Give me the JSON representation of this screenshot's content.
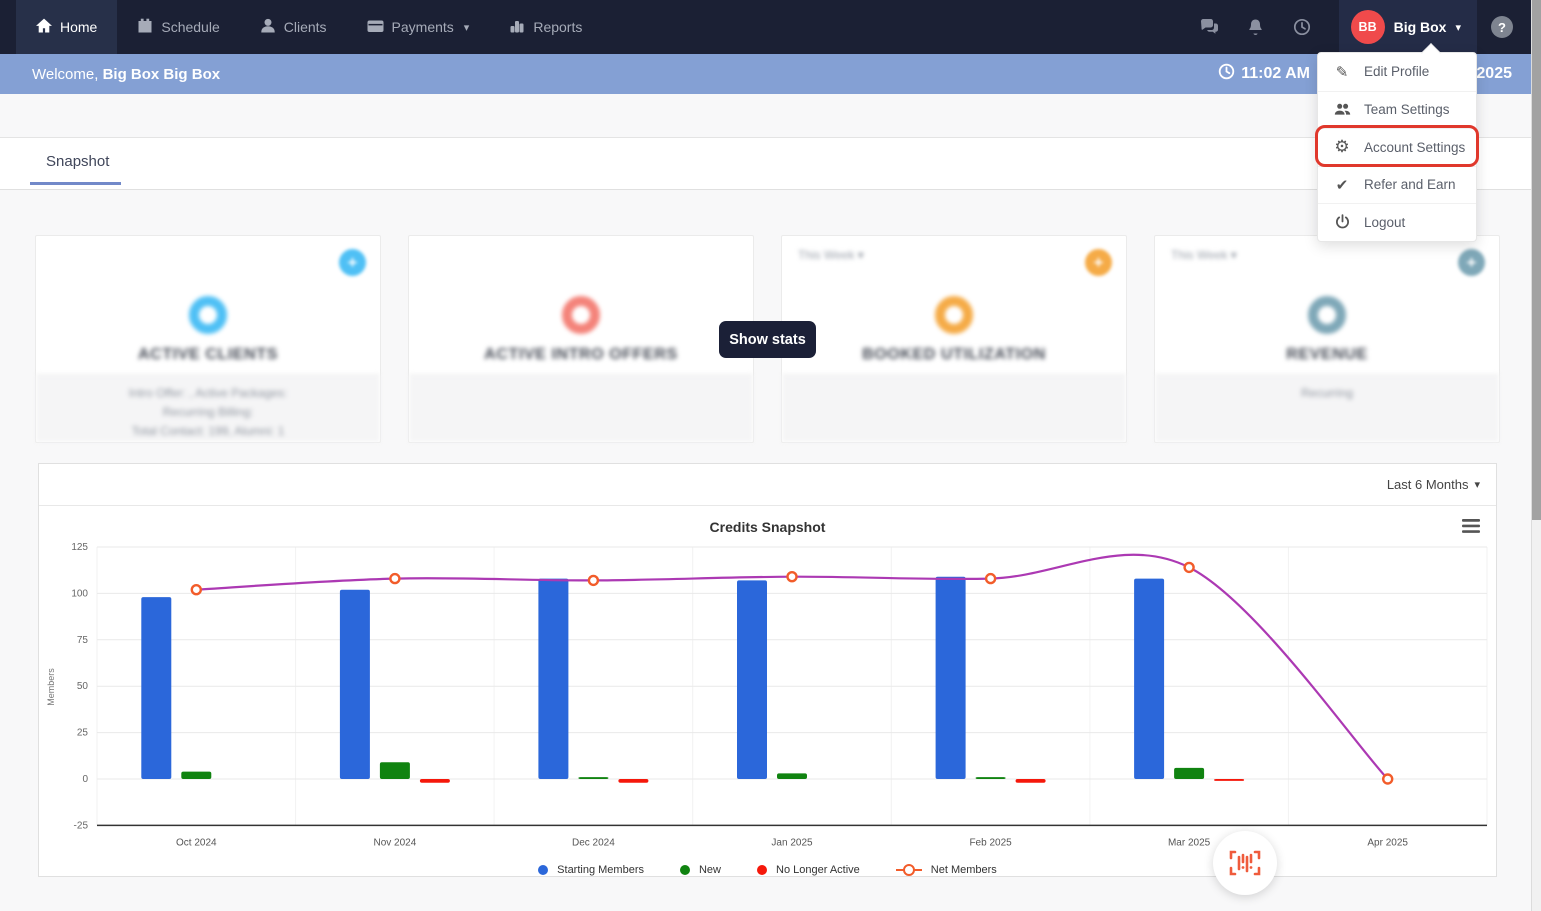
{
  "nav": {
    "items": [
      {
        "label": "Home",
        "icon": "home-icon",
        "active": true
      },
      {
        "label": "Schedule",
        "icon": "calendar-icon",
        "active": false
      },
      {
        "label": "Clients",
        "icon": "person-icon",
        "active": false
      },
      {
        "label": "Payments",
        "icon": "credit-card-icon",
        "active": false,
        "has_caret": true
      },
      {
        "label": "Reports",
        "icon": "bar-chart-icon",
        "active": false
      }
    ],
    "avatar_initials": "BB",
    "user_name": "Big Box",
    "help_glyph": "?"
  },
  "welcome_bar": {
    "greeting": "Welcome,",
    "user_full_name": "Big Box Big Box",
    "time": "11:02 AM",
    "date_fragment": "2025"
  },
  "user_menu": {
    "items": [
      {
        "label": "Edit Profile",
        "icon": "pencil-icon",
        "highlighted": false
      },
      {
        "label": "Team Settings",
        "icon": "team-icon",
        "highlighted": false
      },
      {
        "label": "Account Settings",
        "icon": "gear-icon",
        "highlighted": true
      },
      {
        "label": "Refer and Earn",
        "icon": "check-icon",
        "highlighted": false
      },
      {
        "label": "Logout",
        "icon": "power-icon",
        "highlighted": false
      }
    ],
    "highlight_color": "#e0382c"
  },
  "tabs": {
    "snapshot_label": "Snapshot"
  },
  "overlay": {
    "show_stats_label": "Show stats"
  },
  "stat_cards": [
    {
      "title": "ACTIVE CLIENTS",
      "accent": "#4fc0f5",
      "filter": "",
      "footer_lines": [
        "Intro Offer: , Active Packages:",
        "Recurring Billing:",
        "Total Contact: 199, Alumni: 1"
      ]
    },
    {
      "title": "ACTIVE INTRO OFFERS",
      "accent": "#f4837a",
      "filter": "",
      "footer_lines": [
        "",
        "",
        ""
      ]
    },
    {
      "title": "BOOKED UTILIZATION",
      "accent": "#f5ab47",
      "filter": "This Week",
      "footer_lines": [
        "",
        "",
        ""
      ]
    },
    {
      "title": "REVENUE",
      "accent": "#7fa8b8",
      "filter": "This Week",
      "footer_lines": [
        "Recurring",
        "",
        ""
      ]
    }
  ],
  "chart_card": {
    "range_label": "Last 6 Months"
  },
  "chart_data": {
    "type": "bar+line",
    "title": "Credits Snapshot",
    "ylabel": "Members",
    "categories": [
      "Oct 2024",
      "Nov 2024",
      "Dec 2024",
      "Jan 2025",
      "Feb 2025",
      "Mar 2025",
      "Apr 2025"
    ],
    "series": [
      {
        "name": "Starting Members",
        "type": "bar",
        "color": "#2b67da",
        "values": [
          98,
          102,
          108,
          107,
          109,
          108,
          0
        ]
      },
      {
        "name": "New",
        "type": "bar",
        "color": "#108310",
        "values": [
          4,
          9,
          1,
          3,
          1,
          6,
          0
        ]
      },
      {
        "name": "No Longer Active",
        "type": "bar",
        "color": "#f5180b",
        "values": [
          0,
          -2,
          -2,
          0,
          -2,
          -1,
          0
        ]
      },
      {
        "name": "Net Members",
        "type": "line",
        "color": "#ac39b3",
        "marker_color": "#f25c2a",
        "values": [
          102,
          108,
          107,
          109,
          108,
          114,
          0
        ]
      }
    ],
    "ylim": [
      -25,
      125
    ],
    "ytick_step": 25,
    "grid": true,
    "legend_position": "bottom"
  }
}
